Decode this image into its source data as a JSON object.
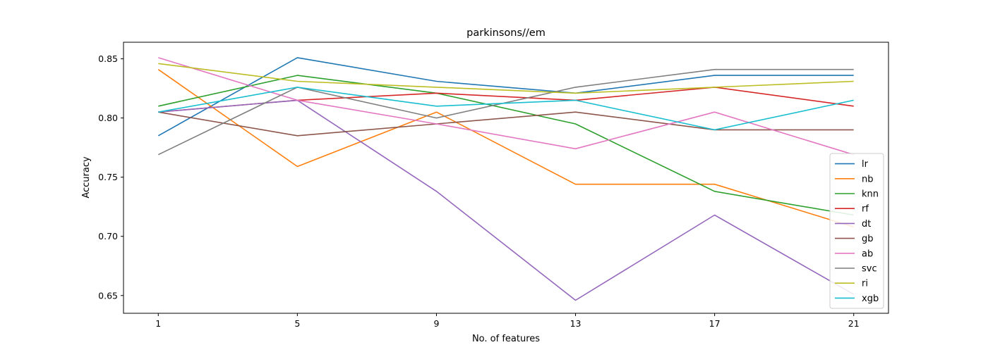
{
  "chart_data": {
    "type": "line",
    "title": "parkinsons//em",
    "xlabel": "No. of features",
    "ylabel": "Accuracy",
    "x": [
      1,
      5,
      9,
      13,
      17,
      21
    ],
    "xticks": [
      "1",
      "5",
      "9",
      "13",
      "17",
      "21"
    ],
    "yticks": [
      "0.65",
      "0.70",
      "0.75",
      "0.80",
      "0.85"
    ],
    "ytick_values": [
      0.65,
      0.7,
      0.75,
      0.8,
      0.85
    ],
    "xlim": [
      0,
      22
    ],
    "ylim": [
      0.635,
      0.864
    ],
    "grid": false,
    "legend_position": "lower-right",
    "series": [
      {
        "name": "lr",
        "color": "#1f77b4",
        "values": [
          0.785,
          0.851,
          0.831,
          0.821,
          0.836,
          0.836
        ]
      },
      {
        "name": "nb",
        "color": "#ff7f0e",
        "values": [
          0.841,
          0.759,
          0.805,
          0.744,
          0.744,
          0.708
        ]
      },
      {
        "name": "knn",
        "color": "#2ca02c",
        "values": [
          0.81,
          0.836,
          0.821,
          0.795,
          0.738,
          0.718
        ]
      },
      {
        "name": "rf",
        "color": "#d62728",
        "values": [
          0.805,
          0.815,
          0.821,
          0.815,
          0.826,
          0.81
        ]
      },
      {
        "name": "dt",
        "color": "#9467bd",
        "values": [
          0.805,
          0.815,
          0.738,
          0.646,
          0.718,
          0.651
        ]
      },
      {
        "name": "gb",
        "color": "#8c564b",
        "values": [
          0.805,
          0.785,
          0.795,
          0.805,
          0.79,
          0.79
        ]
      },
      {
        "name": "ab",
        "color": "#e377c2",
        "values": [
          0.851,
          0.815,
          0.795,
          0.774,
          0.805,
          0.769
        ]
      },
      {
        "name": "svc",
        "color": "#7f7f7f",
        "values": [
          0.769,
          0.826,
          0.8,
          0.826,
          0.841,
          0.841
        ]
      },
      {
        "name": "ri",
        "color": "#bcbd22",
        "values": [
          0.846,
          0.831,
          0.826,
          0.821,
          0.826,
          0.831
        ]
      },
      {
        "name": "xgb",
        "color": "#17becf",
        "values": [
          0.805,
          0.826,
          0.81,
          0.815,
          0.79,
          0.815
        ]
      }
    ]
  }
}
